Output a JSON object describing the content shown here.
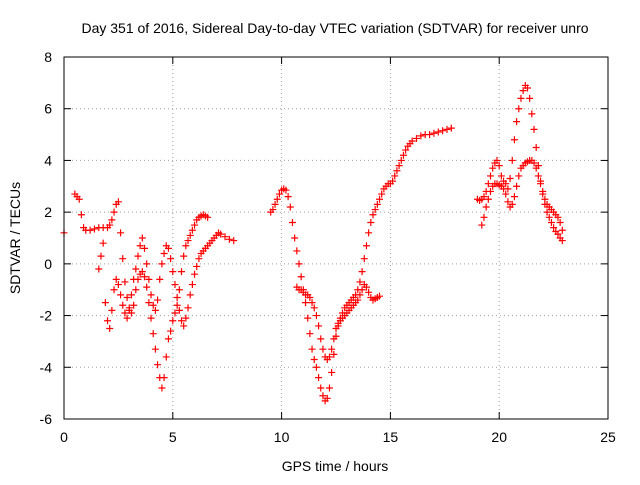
{
  "chart_data": {
    "type": "scatter",
    "title": "Day 351 of 2016, Sidereal Day-to-day VTEC variation (SDTVAR) for receiver unro",
    "xlabel": "GPS time / hours",
    "ylabel": "SDTVAR / TECUs",
    "xlim": [
      0,
      25
    ],
    "ylim": [
      -6,
      8
    ],
    "xticks": [
      0,
      5,
      10,
      15,
      20,
      25
    ],
    "yticks": [
      -6,
      -4,
      -2,
      0,
      2,
      4,
      6,
      8
    ],
    "grid": true,
    "marker": "+",
    "color": "#ff0000",
    "legend": "none",
    "series": [
      {
        "x": [
          0.0,
          0.5,
          0.6,
          0.7,
          0.8,
          0.9,
          1.0,
          1.2,
          1.4,
          1.6,
          1.8,
          2.0,
          2.1,
          2.2,
          2.3,
          2.4,
          2.5,
          2.6,
          2.7,
          2.8,
          2.9,
          3.0,
          3.1,
          3.2,
          3.3,
          3.4,
          3.5,
          3.6,
          3.7,
          3.8,
          3.9,
          4.0,
          4.1,
          4.2,
          4.3,
          4.4,
          4.5,
          4.6,
          4.7,
          4.8,
          4.9,
          5.0,
          5.1,
          5.2,
          5.3,
          5.4,
          5.5,
          5.6,
          5.7,
          5.8,
          5.9,
          6.0,
          6.1,
          6.2,
          6.3,
          6.4,
          6.5,
          6.6
        ],
        "y": [
          1.2,
          2.7,
          2.6,
          2.5,
          1.9,
          1.4,
          1.3,
          1.3,
          1.35,
          1.4,
          1.4,
          1.4,
          1.5,
          1.7,
          2.0,
          2.3,
          2.4,
          1.2,
          0.2,
          -0.7,
          -1.3,
          -1.7,
          -1.9,
          -1.6,
          -1.0,
          -0.6,
          -0.4,
          -0.3,
          -0.5,
          -0.9,
          -1.5,
          -2.1,
          -2.7,
          -3.3,
          -3.9,
          -4.4,
          -4.8,
          -4.4,
          -3.6,
          -2.9,
          -2.6,
          -2.2,
          -1.9,
          -1.6,
          -1.0,
          -0.3,
          0.3,
          0.7,
          0.9,
          1.1,
          1.3,
          1.5,
          1.7,
          1.8,
          1.85,
          1.9,
          1.85,
          1.8
        ]
      },
      {
        "x": [
          1.6,
          1.7,
          1.8,
          1.9,
          2.0,
          2.1,
          2.2,
          2.3,
          2.4,
          2.5,
          2.6,
          2.7,
          2.8,
          2.9,
          3.0,
          3.1,
          3.2,
          3.3,
          3.4,
          3.5,
          3.6,
          3.7,
          3.8,
          3.9,
          4.0,
          4.1,
          4.2,
          4.3,
          4.4,
          4.5,
          4.6,
          4.7,
          4.8,
          4.9,
          5.0,
          5.1,
          5.2,
          5.3,
          5.4,
          5.5,
          5.6,
          5.7,
          5.8,
          5.9,
          6.0,
          6.1,
          6.2,
          6.3,
          6.4,
          6.5,
          6.6,
          6.7,
          6.8,
          6.9,
          7.0,
          7.1,
          7.2,
          7.4,
          7.6,
          7.8
        ],
        "y": [
          -0.2,
          0.3,
          0.8,
          -1.5,
          -2.2,
          -2.5,
          -1.8,
          -1.0,
          -0.6,
          -0.8,
          -1.2,
          -1.6,
          -1.9,
          -2.1,
          -1.8,
          -1.2,
          -0.6,
          -0.2,
          0.3,
          0.7,
          1.0,
          0.6,
          0.0,
          -0.6,
          -1.2,
          -1.6,
          -1.8,
          -1.4,
          -0.6,
          0.0,
          0.4,
          0.7,
          0.6,
          0.2,
          -0.3,
          -0.8,
          -1.3,
          -1.8,
          -2.2,
          -2.4,
          -2.1,
          -1.7,
          -1.2,
          -0.8,
          -0.4,
          -0.1,
          0.2,
          0.4,
          0.5,
          0.6,
          0.7,
          0.8,
          0.9,
          1.0,
          1.1,
          1.2,
          1.15,
          1.05,
          0.95,
          0.9
        ]
      },
      {
        "x": [
          9.5,
          9.6,
          9.7,
          9.8,
          9.9,
          10.0,
          10.1,
          10.2,
          10.3,
          10.4,
          10.5,
          10.6,
          10.7,
          10.8,
          10.9,
          11.0,
          11.1,
          11.2,
          11.3,
          11.4,
          11.5,
          11.6,
          11.7,
          11.8,
          11.9,
          12.0,
          12.1,
          12.2,
          12.3,
          12.4,
          12.5,
          12.6,
          12.7,
          12.8,
          12.9,
          13.0,
          13.1,
          13.2,
          13.3,
          13.4,
          13.5,
          13.6,
          13.7,
          13.8,
          13.9,
          14.0,
          14.1,
          14.2,
          14.3,
          14.4,
          14.5,
          14.6,
          14.7,
          14.8,
          14.9,
          15.0,
          15.1,
          15.2,
          15.3,
          15.4,
          15.5,
          15.6,
          15.7,
          15.8,
          15.9,
          16.0,
          16.2,
          16.4,
          16.6,
          16.8,
          17.0,
          17.2,
          17.4,
          17.6,
          17.8
        ],
        "y": [
          2.0,
          2.1,
          2.3,
          2.5,
          2.7,
          2.85,
          2.9,
          2.85,
          2.6,
          2.2,
          1.6,
          1.0,
          0.5,
          0.0,
          -0.5,
          -1.0,
          -1.5,
          -2.1,
          -2.7,
          -3.3,
          -3.7,
          -4.0,
          -4.4,
          -4.8,
          -5.1,
          -5.3,
          -5.2,
          -4.8,
          -4.2,
          -3.5,
          -2.8,
          -2.4,
          -2.1,
          -1.9,
          -1.7,
          -1.6,
          -1.5,
          -1.4,
          -1.3,
          -1.2,
          -1.0,
          -0.7,
          -0.3,
          0.2,
          0.7,
          1.2,
          1.6,
          1.9,
          2.1,
          2.3,
          2.5,
          2.7,
          2.9,
          3.0,
          3.1,
          3.1,
          3.2,
          3.4,
          3.6,
          3.8,
          4.0,
          4.2,
          4.4,
          4.55,
          4.65,
          4.75,
          4.85,
          4.95,
          5.0,
          5.0,
          5.05,
          5.1,
          5.15,
          5.2,
          5.25
        ]
      },
      {
        "x": [
          10.7,
          10.8,
          10.9,
          11.0,
          11.1,
          11.2,
          11.3,
          11.4,
          11.5,
          11.6,
          11.7,
          11.8,
          11.9,
          12.0,
          12.1,
          12.2,
          12.3,
          12.4,
          12.5,
          12.6,
          12.7,
          12.8,
          12.9,
          13.0,
          13.1,
          13.2,
          13.3,
          13.4,
          13.5,
          13.6,
          13.7,
          13.8,
          13.9,
          14.0,
          14.1,
          14.2,
          14.3,
          14.4,
          14.5
        ],
        "y": [
          -0.9,
          -1.0,
          -1.0,
          -1.1,
          -1.2,
          -1.2,
          -1.3,
          -1.5,
          -1.7,
          -2.0,
          -2.4,
          -2.9,
          -3.3,
          -3.6,
          -3.7,
          -3.6,
          -3.3,
          -2.9,
          -2.5,
          -2.3,
          -2.2,
          -2.1,
          -2.0,
          -1.9,
          -1.8,
          -1.7,
          -1.6,
          -1.5,
          -1.4,
          -1.2,
          -1.0,
          -0.8,
          -0.9,
          -1.1,
          -1.3,
          -1.4,
          -1.35,
          -1.3,
          -1.25
        ]
      },
      {
        "x": [
          19.0,
          19.1,
          19.2,
          19.3,
          19.4,
          19.5,
          19.6,
          19.7,
          19.8,
          19.9,
          20.0,
          20.1,
          20.2,
          20.3,
          20.4,
          20.5,
          20.6,
          20.7,
          20.8,
          20.9,
          21.0,
          21.1,
          21.2,
          21.3,
          21.4,
          21.5,
          21.6,
          21.7,
          21.8,
          21.9,
          22.0,
          22.1,
          22.2,
          22.3,
          22.4,
          22.5,
          22.6,
          22.7,
          22.8,
          22.9
        ],
        "y": [
          2.5,
          2.45,
          2.5,
          2.6,
          2.8,
          3.1,
          3.4,
          3.7,
          3.9,
          4.0,
          3.8,
          3.4,
          3.2,
          3.1,
          2.9,
          3.3,
          4.0,
          4.8,
          5.5,
          6.0,
          6.4,
          6.7,
          6.9,
          6.8,
          6.4,
          5.8,
          5.2,
          4.5,
          3.8,
          3.2,
          2.7,
          2.3,
          2.0,
          1.8,
          1.6,
          1.4,
          1.25,
          1.15,
          1.0,
          0.9
        ]
      },
      {
        "x": [
          19.2,
          19.3,
          19.4,
          19.5,
          19.6,
          19.7,
          19.8,
          19.9,
          20.0,
          20.1,
          20.2,
          20.3,
          20.4,
          20.5,
          20.6,
          20.7,
          20.8,
          20.9,
          21.0,
          21.1,
          21.2,
          21.3,
          21.4,
          21.5,
          21.6,
          21.7,
          21.8,
          21.9,
          22.0,
          22.1,
          22.2,
          22.3,
          22.4,
          22.5,
          22.6,
          22.7,
          22.8,
          22.9
        ],
        "y": [
          1.5,
          1.8,
          2.2,
          2.5,
          2.8,
          3.0,
          3.1,
          3.1,
          3.05,
          3.0,
          2.9,
          2.7,
          2.4,
          2.2,
          2.3,
          2.6,
          3.0,
          3.4,
          3.7,
          3.8,
          3.9,
          3.95,
          4.0,
          4.0,
          3.9,
          3.7,
          3.4,
          3.1,
          2.8,
          2.5,
          2.3,
          2.2,
          2.1,
          2.0,
          1.9,
          1.8,
          1.6,
          1.3
        ]
      }
    ]
  }
}
